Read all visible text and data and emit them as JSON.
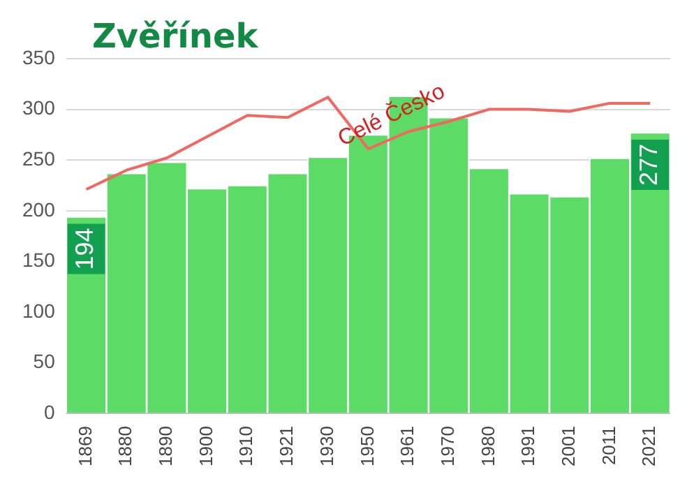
{
  "chart_data": {
    "type": "bar",
    "title": "Zvěřínek",
    "categories": [
      "1869",
      "1880",
      "1890",
      "1900",
      "1910",
      "1921",
      "1930",
      "1950",
      "1961",
      "1970",
      "1980",
      "1991",
      "2001",
      "2011",
      "2021"
    ],
    "series": [
      {
        "color": "#5cdb66",
        "values": [
          194,
          237,
          248,
          222,
          225,
          237,
          253,
          275,
          313,
          292,
          242,
          217,
          214,
          252,
          277
        ],
        "value_labels": [
          "194",
          null,
          null,
          null,
          null,
          null,
          null,
          null,
          null,
          null,
          null,
          null,
          null,
          null,
          "277"
        ]
      },
      {
        "type": "line",
        "name": "Celé Česko",
        "color": "#f06860",
        "values": [
          221,
          240,
          252,
          273,
          294,
          292,
          312,
          261,
          278,
          288,
          300,
          300,
          298,
          306,
          306
        ]
      }
    ],
    "ylim": [
      0,
      350
    ],
    "yticks": [
      0,
      50,
      100,
      150,
      200,
      250,
      300,
      350
    ],
    "grid": "y",
    "legend": false,
    "marker": "none"
  }
}
